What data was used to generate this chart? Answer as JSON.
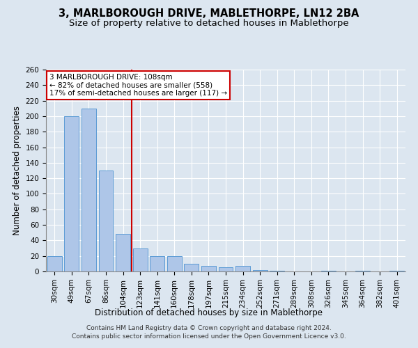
{
  "title": "3, MARLBOROUGH DRIVE, MABLETHORPE, LN12 2BA",
  "subtitle": "Size of property relative to detached houses in Mablethorpe",
  "xlabel": "Distribution of detached houses by size in Mablethorpe",
  "ylabel": "Number of detached properties",
  "categories": [
    "30sqm",
    "49sqm",
    "67sqm",
    "86sqm",
    "104sqm",
    "123sqm",
    "141sqm",
    "160sqm",
    "178sqm",
    "197sqm",
    "215sqm",
    "234sqm",
    "252sqm",
    "271sqm",
    "289sqm",
    "308sqm",
    "326sqm",
    "345sqm",
    "364sqm",
    "382sqm",
    "401sqm"
  ],
  "values": [
    20,
    200,
    210,
    130,
    48,
    30,
    20,
    20,
    10,
    7,
    5,
    7,
    2,
    1,
    0,
    0,
    1,
    0,
    1,
    0,
    1
  ],
  "bar_color": "#aec6e8",
  "bar_edge_color": "#5b9bd5",
  "annotation_line1": "3 MARLBOROUGH DRIVE: 108sqm",
  "annotation_line2": "← 82% of detached houses are smaller (558)",
  "annotation_line3": "17% of semi-detached houses are larger (117) →",
  "annotation_box_color": "#ffffff",
  "annotation_box_edge_color": "#cc0000",
  "vline_x": 4.5,
  "vline_color": "#cc0000",
  "background_color": "#dce6f0",
  "plot_background_color": "#dce6f0",
  "grid_color": "#ffffff",
  "footnote_line1": "Contains HM Land Registry data © Crown copyright and database right 2024.",
  "footnote_line2": "Contains public sector information licensed under the Open Government Licence v3.0.",
  "ylim": [
    0,
    260
  ],
  "yticks": [
    0,
    20,
    40,
    60,
    80,
    100,
    120,
    140,
    160,
    180,
    200,
    220,
    240,
    260
  ],
  "title_fontsize": 10.5,
  "subtitle_fontsize": 9.5,
  "axis_label_fontsize": 8.5,
  "tick_fontsize": 7.5,
  "annotation_fontsize": 7.5,
  "footnote_fontsize": 6.5
}
